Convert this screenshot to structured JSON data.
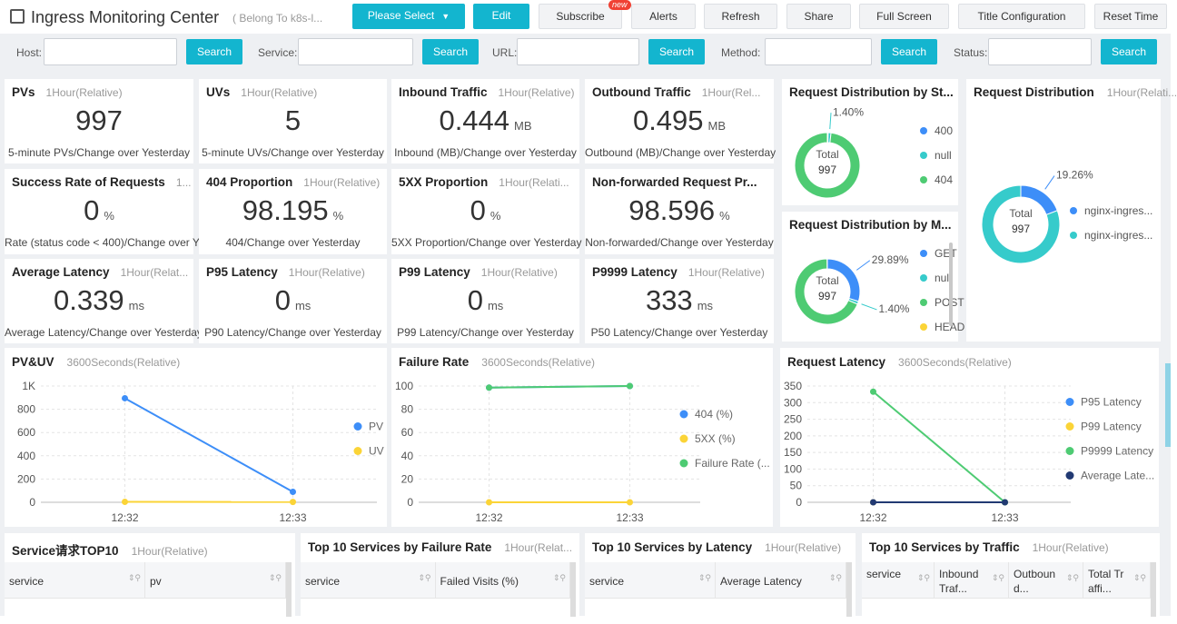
{
  "header": {
    "title": "Ingress Monitoring Center",
    "belong": "( Belong To k8s-l...",
    "badge": "new",
    "buttons": [
      "Please Select",
      "Edit",
      "Subscribe",
      "Alerts",
      "Refresh",
      "Share",
      "Full Screen",
      "Title Configuration",
      "Reset Time"
    ]
  },
  "filters": [
    {
      "label": "Host:",
      "button": "Search"
    },
    {
      "label": "Service:",
      "button": "Search"
    },
    {
      "label": "URL:",
      "button": "Search"
    },
    {
      "label": "Method:",
      "button": "Search"
    },
    {
      "label": "Status:",
      "button": "Search"
    }
  ],
  "stats": [
    {
      "title": "PVs",
      "range": "1Hour(Relative)",
      "value": 997,
      "caption": "5-minute PVs/Change over Yesterday"
    },
    {
      "title": "UVs",
      "range": "1Hour(Relative)",
      "value": 5,
      "caption": "5-minute UVs/Change over Yesterday"
    },
    {
      "title": "Inbound Traffic",
      "range": "1Hour(Relative)",
      "value": 0.444,
      "unit": "MB",
      "caption": "Inbound (MB)/Change over Yesterday"
    },
    {
      "title": "Outbound Traffic",
      "range": "1Hour(Rel...",
      "value": 0.495,
      "unit": "MB",
      "caption": "Outbound (MB)/Change over Yesterday"
    },
    {
      "title": "Success Rate of Requests",
      "range": "1...",
      "value": 0,
      "unit": "%",
      "caption": "Rate (status code < 400)/Change over Y"
    },
    {
      "title": "404 Proportion",
      "range": "1Hour(Relative)",
      "value": 98.195,
      "unit": "%",
      "caption": "404/Change over Yesterday"
    },
    {
      "title": "5XX Proportion",
      "range": "1Hour(Relati...",
      "value": 0,
      "unit": "%",
      "caption": "5XX Proportion/Change over Yesterday"
    },
    {
      "title": "Non-forwarded Request Pr...",
      "value": 98.596,
      "unit": "%",
      "caption": "Non-forwarded/Change over Yesterday"
    },
    {
      "title": "Average Latency",
      "range": "1Hour(Relat...",
      "value": 0.339,
      "unit": "ms",
      "caption": "Average Latency/Change over Yesterday"
    },
    {
      "title": "P95 Latency",
      "range": "1Hour(Relative)",
      "value": 0,
      "unit": "ms",
      "caption": "P90 Latency/Change over Yesterday"
    },
    {
      "title": "P99 Latency",
      "range": "1Hour(Relative)",
      "value": 0,
      "unit": "ms",
      "caption": "P99 Latency/Change over Yesterday"
    },
    {
      "title": "P9999 Latency",
      "range": "1Hour(Relative)",
      "value": 333,
      "unit": "ms",
      "caption": "P50 Latency/Change over Yesterday"
    }
  ],
  "donuts": [
    {
      "type": "pie",
      "title": "Request Distribution by St...",
      "total_label": "Total",
      "total": 997,
      "labels": [
        "400",
        "null",
        "404"
      ],
      "colors": [
        "#3d8ef8",
        "#36cbcb",
        "#4ecb73"
      ],
      "values": [
        0.4,
        1.4,
        98.2
      ],
      "value_labels": [
        null,
        "1.40%",
        null
      ]
    },
    {
      "type": "pie",
      "title": "Request Distribution by M...",
      "total_label": "Total",
      "total": 997,
      "labels": [
        "GET",
        "null",
        "POST",
        "HEAD"
      ],
      "colors": [
        "#3d8ef8",
        "#36cbcb",
        "#4ecb73",
        "#fbd437"
      ],
      "values": [
        29.89,
        1.4,
        68.61,
        0.1
      ],
      "value_labels": [
        "29.89%",
        "1.40%",
        null,
        null
      ]
    },
    {
      "type": "pie",
      "title": "Request Distribution",
      "range": "1Hour(Relati...",
      "total_label": "Total",
      "total": 997,
      "labels": [
        "nginx-ingres...",
        "nginx-ingres..."
      ],
      "colors": [
        "#3d8ef8",
        "#36cbcb"
      ],
      "values": [
        19.26,
        80.74
      ],
      "value_labels": [
        "19.26%",
        null
      ]
    }
  ],
  "lines": [
    {
      "type": "line",
      "title": "PV&UV",
      "range": "3600Seconds(Relative)",
      "categories": [
        "12:32",
        "12:33"
      ],
      "ylim": [
        0,
        1000
      ],
      "yticks": [
        0,
        200,
        400,
        600,
        800,
        {
          "value": 1000,
          "label": "1K"
        }
      ],
      "series": [
        {
          "name": "PV",
          "color": "#3d8ef8",
          "values": [
            895,
            90
          ]
        },
        {
          "name": "UV",
          "color": "#fbd437",
          "values": [
            4,
            3
          ]
        }
      ]
    },
    {
      "type": "line",
      "title": "Failure Rate",
      "range": "3600Seconds(Relative)",
      "categories": [
        "12:32",
        "12:33"
      ],
      "ylim": [
        0,
        100
      ],
      "yticks": [
        0,
        20,
        40,
        60,
        80,
        100
      ],
      "series": [
        {
          "name": "404 (%)",
          "color": "#3d8ef8",
          "values": [
            98.6,
            100
          ]
        },
        {
          "name": "5XX (%)",
          "color": "#fbd437",
          "values": [
            0,
            0
          ]
        },
        {
          "name": "Failure Rate (...",
          "color": "#4ecb73",
          "values": [
            98.6,
            100
          ]
        }
      ]
    },
    {
      "type": "line",
      "title": "Request Latency",
      "range": "3600Seconds(Relative)",
      "categories": [
        "12:32",
        "12:33"
      ],
      "ylim": [
        0,
        350
      ],
      "yticks": [
        0,
        50,
        100,
        150,
        200,
        250,
        300,
        350
      ],
      "series": [
        {
          "name": "P95 Latency",
          "color": "#3d8ef8",
          "values": [
            0,
            0
          ]
        },
        {
          "name": "P99 Latency",
          "color": "#fbd437",
          "values": [
            0,
            0
          ]
        },
        {
          "name": "P9999 Latency",
          "color": "#4ecb73",
          "values": [
            333,
            0
          ]
        },
        {
          "name": "Average Late...",
          "color": "#223a73",
          "values": [
            0,
            0
          ]
        }
      ]
    }
  ],
  "tables": [
    {
      "title": "Service请求TOP10",
      "range": "1Hour(Relative)",
      "columns": [
        "service",
        "pv"
      ]
    },
    {
      "title": "Top 10 Services by Failure Rate",
      "range": "1Hour(Relat...",
      "columns": [
        "service",
        "Failed Visits (%)"
      ]
    },
    {
      "title": "Top 10 Services by Latency",
      "range": "1Hour(Relative)",
      "columns": [
        "service",
        "Average Latency"
      ]
    },
    {
      "title": "Top 10 Services by Traffic",
      "range": "1Hour(Relative)",
      "columns": [
        "service",
        "Inbound Traf...",
        "Outbound...",
        "Total Traffi..."
      ]
    }
  ]
}
